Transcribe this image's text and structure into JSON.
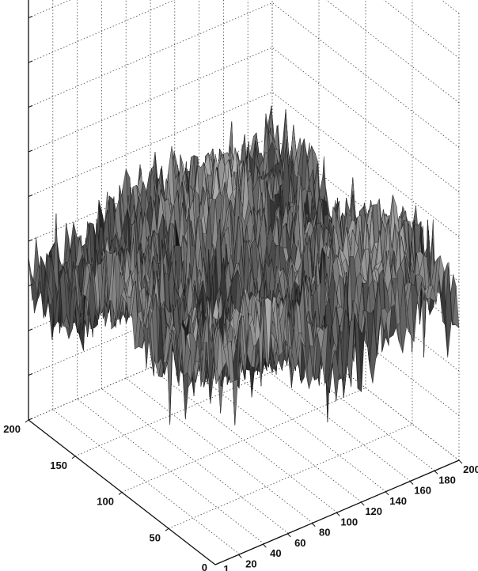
{
  "chart_data": {
    "type": "surface3d",
    "title": "",
    "xlabel": "",
    "ylabel": "",
    "zlabel": "",
    "grid": true,
    "colormap": "grayscale",
    "x_ticks": [
      "20",
      "40",
      "60",
      "80",
      "100",
      "120",
      "140",
      "160",
      "180",
      "200"
    ],
    "x_corner_label": "1",
    "x_range": [
      1,
      200
    ],
    "y_ticks": [
      "50",
      "100",
      "150",
      "200"
    ],
    "y_corner_label": "0",
    "y_range": [
      0,
      200
    ],
    "surface": {
      "grid_points": 200,
      "shape": "rough random fractal height field",
      "relative_height_range": [
        0.18,
        0.58
      ]
    }
  }
}
